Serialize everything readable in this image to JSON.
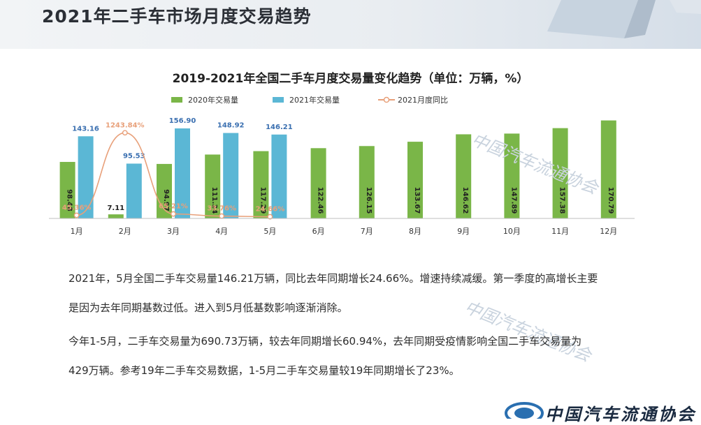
{
  "slide": {
    "title": "2021年二手车市场月度交易趋势"
  },
  "chart_data": {
    "type": "bar",
    "title": "2019-2021年全国二手车月度交易量变化趋势（单位：万辆，%）",
    "categories": [
      "1月",
      "2月",
      "3月",
      "4月",
      "5月",
      "6月",
      "7月",
      "8月",
      "9月",
      "10月",
      "11月",
      "12月"
    ],
    "series": [
      {
        "name": "2020年交易量",
        "kind": "bar",
        "color": "#7ab648",
        "values": [
          98.48,
          7.11,
          94.97,
          111.34,
          117.29,
          122.46,
          126.15,
          133.67,
          146.62,
          147.89,
          157.38,
          170.79
        ],
        "labels": [
          "98.48",
          "7.11",
          "94.97",
          "111.34",
          "117.29",
          "122.46",
          "126.15",
          "133.67",
          "146.62",
          "147.89",
          "157.38",
          "170.79"
        ]
      },
      {
        "name": "2021年交易量",
        "kind": "bar",
        "color": "#5bb7d5",
        "values": [
          143.16,
          95.53,
          156.9,
          148.92,
          146.21,
          null,
          null,
          null,
          null,
          null,
          null,
          null
        ],
        "labels": [
          "143.16",
          "95.53",
          "156.90",
          "148.92",
          "146.21",
          "",
          "",
          "",
          "",
          "",
          "",
          ""
        ]
      },
      {
        "name": "2021月度同比",
        "kind": "line",
        "color": "#e8a07a",
        "values": [
          45.36,
          1243.84,
          65.21,
          33.76,
          24.66,
          null,
          null,
          null,
          null,
          null,
          null,
          null
        ],
        "labels": [
          "45.36%",
          "1243.84%",
          "65.21%",
          "33.76%",
          "24.66%",
          "",
          "",
          "",
          "",
          "",
          "",
          ""
        ]
      }
    ],
    "legend_position": "top",
    "grid": false,
    "ylim_bars": [
      0,
      180
    ],
    "ylim_line": [
      0,
      1500
    ]
  },
  "text": {
    "para1_line1": "2021年，5月全国二手车交易量146.21万辆，同比去年同期增长24.66%。增速持续减缓。第一季度的高增长主要",
    "para1_line2": "是因为去年同期基数过低。进入到5月低基数影响逐渐消除。",
    "para2_line1": "今年1-5月，二手车交易量为690.73万辆，较去年同期增长60.94%，去年同期受疫情影响全国二手车交易量为",
    "para2_line2": "429万辆。参考19年二手车交易数据，1-5月二手车交易量较19年同期增长了23%。"
  },
  "watermark": {
    "cn": "中国汽车流通协会"
  },
  "logo": {
    "text": "中国汽车流通协会"
  },
  "colors": {
    "green": "#7ab648",
    "blue": "#5bb7d5",
    "orange": "#e8a07a"
  }
}
